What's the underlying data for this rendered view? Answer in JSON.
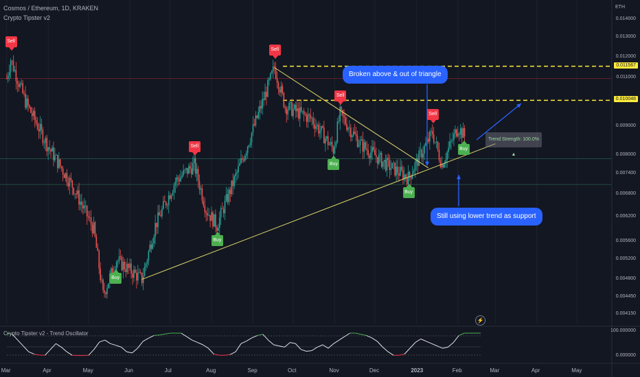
{
  "header": {
    "symbol_line": "Cosmos / Ethereum, 1D, KRAKEN",
    "indicator": "Crypto Tipster v2",
    "currency": "ETH"
  },
  "oscillator": {
    "title": "Crypto Tipster v2 - Trend Oscillator",
    "scale_top": "100.000000",
    "scale_bottom": "0.000000"
  },
  "price_axis": {
    "ticks": [
      "0.014000",
      "0.013000",
      "0.012000",
      "0.011000",
      "0.009000",
      "0.008000",
      "0.007400",
      "0.006800",
      "0.006200",
      "0.005600",
      "0.005200",
      "0.004800",
      "0.004450",
      "0.004150"
    ],
    "tagged": [
      {
        "label": "0.011567",
        "price": 0.011567
      },
      {
        "label": "0.010048",
        "price": 0.010048
      }
    ]
  },
  "time_axis": [
    "Mar",
    "Apr",
    "May",
    "Jun",
    "Jul",
    "Aug",
    "Sep",
    "Oct",
    "Nov",
    "Dec",
    "2023",
    "Feb",
    "Mar",
    "Apr",
    "May"
  ],
  "annotations": {
    "callout_top": "Broken above & out of triangle",
    "callout_bottom": "Still using lower trend as support",
    "trend_strength": "Trend Strength: 100.0% ▲"
  },
  "signals": {
    "sell_label": "Sell",
    "buy_label": "Buy",
    "list": [
      {
        "type": "sell",
        "date": "2022-03-04"
      },
      {
        "type": "buy",
        "date": "2022-05-21"
      },
      {
        "type": "sell",
        "date": "2022-07-19"
      },
      {
        "type": "buy",
        "date": "2022-08-05"
      },
      {
        "type": "sell",
        "date": "2022-09-17"
      },
      {
        "type": "buy",
        "date": "2022-10-31"
      },
      {
        "type": "sell",
        "date": "2022-11-05"
      },
      {
        "type": "buy",
        "date": "2022-12-26"
      },
      {
        "type": "sell",
        "date": "2023-01-13"
      },
      {
        "type": "buy",
        "date": "2023-02-05"
      }
    ]
  },
  "colors": {
    "background": "#131722",
    "up": "#26a69a",
    "down": "#ef5350",
    "trendline": "#e0d96b",
    "arrow": "#2962ff",
    "level": "#ffeb3b",
    "sell": "#f23645",
    "buy": "#4caf50"
  },
  "chart_data": {
    "type": "candlestick",
    "instrument": "Cosmos / Ethereum",
    "interval": "1D",
    "exchange": "KRAKEN",
    "ylim": [
      0.004,
      0.0152
    ],
    "y_scale": "log",
    "keypoints": [
      {
        "date": "2022-03-01",
        "close": 0.011
      },
      {
        "date": "2022-03-04",
        "close": 0.0119
      },
      {
        "date": "2022-03-15",
        "close": 0.01
      },
      {
        "date": "2022-04-01",
        "close": 0.0083
      },
      {
        "date": "2022-04-20",
        "close": 0.007
      },
      {
        "date": "2022-05-05",
        "close": 0.0059
      },
      {
        "date": "2022-05-12",
        "close": 0.0045
      },
      {
        "date": "2022-05-22",
        "close": 0.0052
      },
      {
        "date": "2022-06-10",
        "close": 0.0048
      },
      {
        "date": "2022-06-20",
        "close": 0.006
      },
      {
        "date": "2022-07-05",
        "close": 0.0072
      },
      {
        "date": "2022-07-19",
        "close": 0.0077
      },
      {
        "date": "2022-07-28",
        "close": 0.0064
      },
      {
        "date": "2022-08-05",
        "close": 0.006
      },
      {
        "date": "2022-08-25",
        "close": 0.008
      },
      {
        "date": "2022-09-07",
        "close": 0.0098
      },
      {
        "date": "2022-09-17",
        "close": 0.0115
      },
      {
        "date": "2022-09-25",
        "close": 0.0098
      },
      {
        "date": "2022-10-15",
        "close": 0.0093
      },
      {
        "date": "2022-10-31",
        "close": 0.0082
      },
      {
        "date": "2022-11-05",
        "close": 0.0095
      },
      {
        "date": "2022-11-20",
        "close": 0.0084
      },
      {
        "date": "2022-12-10",
        "close": 0.0077
      },
      {
        "date": "2022-12-26",
        "close": 0.0073
      },
      {
        "date": "2023-01-05",
        "close": 0.0081
      },
      {
        "date": "2023-01-13",
        "close": 0.0088
      },
      {
        "date": "2023-01-20",
        "close": 0.0077
      },
      {
        "date": "2023-02-01",
        "close": 0.009
      },
      {
        "date": "2023-02-07",
        "close": 0.0086
      }
    ],
    "trendlines": [
      {
        "name": "upper",
        "from": {
          "date": "2022-09-17",
          "price": 0.0115
        },
        "to": {
          "date": "2023-01-10",
          "price": 0.0076
        }
      },
      {
        "name": "lower",
        "from": {
          "date": "2022-06-10",
          "price": 0.0048
        },
        "to": {
          "date": "2023-03-01",
          "price": 0.0084
        }
      }
    ],
    "levels": [
      0.011567,
      0.010048
    ]
  },
  "oscillator_data": {
    "range": [
      0,
      100
    ],
    "values": [
      100,
      95,
      70,
      45,
      20,
      10,
      6,
      5,
      30,
      55,
      40,
      20,
      5,
      4,
      4,
      5,
      30,
      62,
      70,
      55,
      48,
      40,
      20,
      15,
      35,
      65,
      78,
      90,
      92,
      96,
      100,
      100,
      100,
      85,
      70,
      60,
      50,
      35,
      10,
      5,
      5,
      8,
      20,
      55,
      66,
      80,
      90,
      95,
      70,
      50,
      45,
      40,
      60,
      55,
      30,
      22,
      25,
      40,
      50,
      35,
      55,
      70,
      85,
      100,
      100,
      95,
      90,
      80,
      65,
      40,
      20,
      5,
      5,
      10,
      35,
      60,
      75,
      65,
      55,
      45,
      35,
      40,
      60,
      90,
      100,
      100,
      100,
      100
    ]
  }
}
